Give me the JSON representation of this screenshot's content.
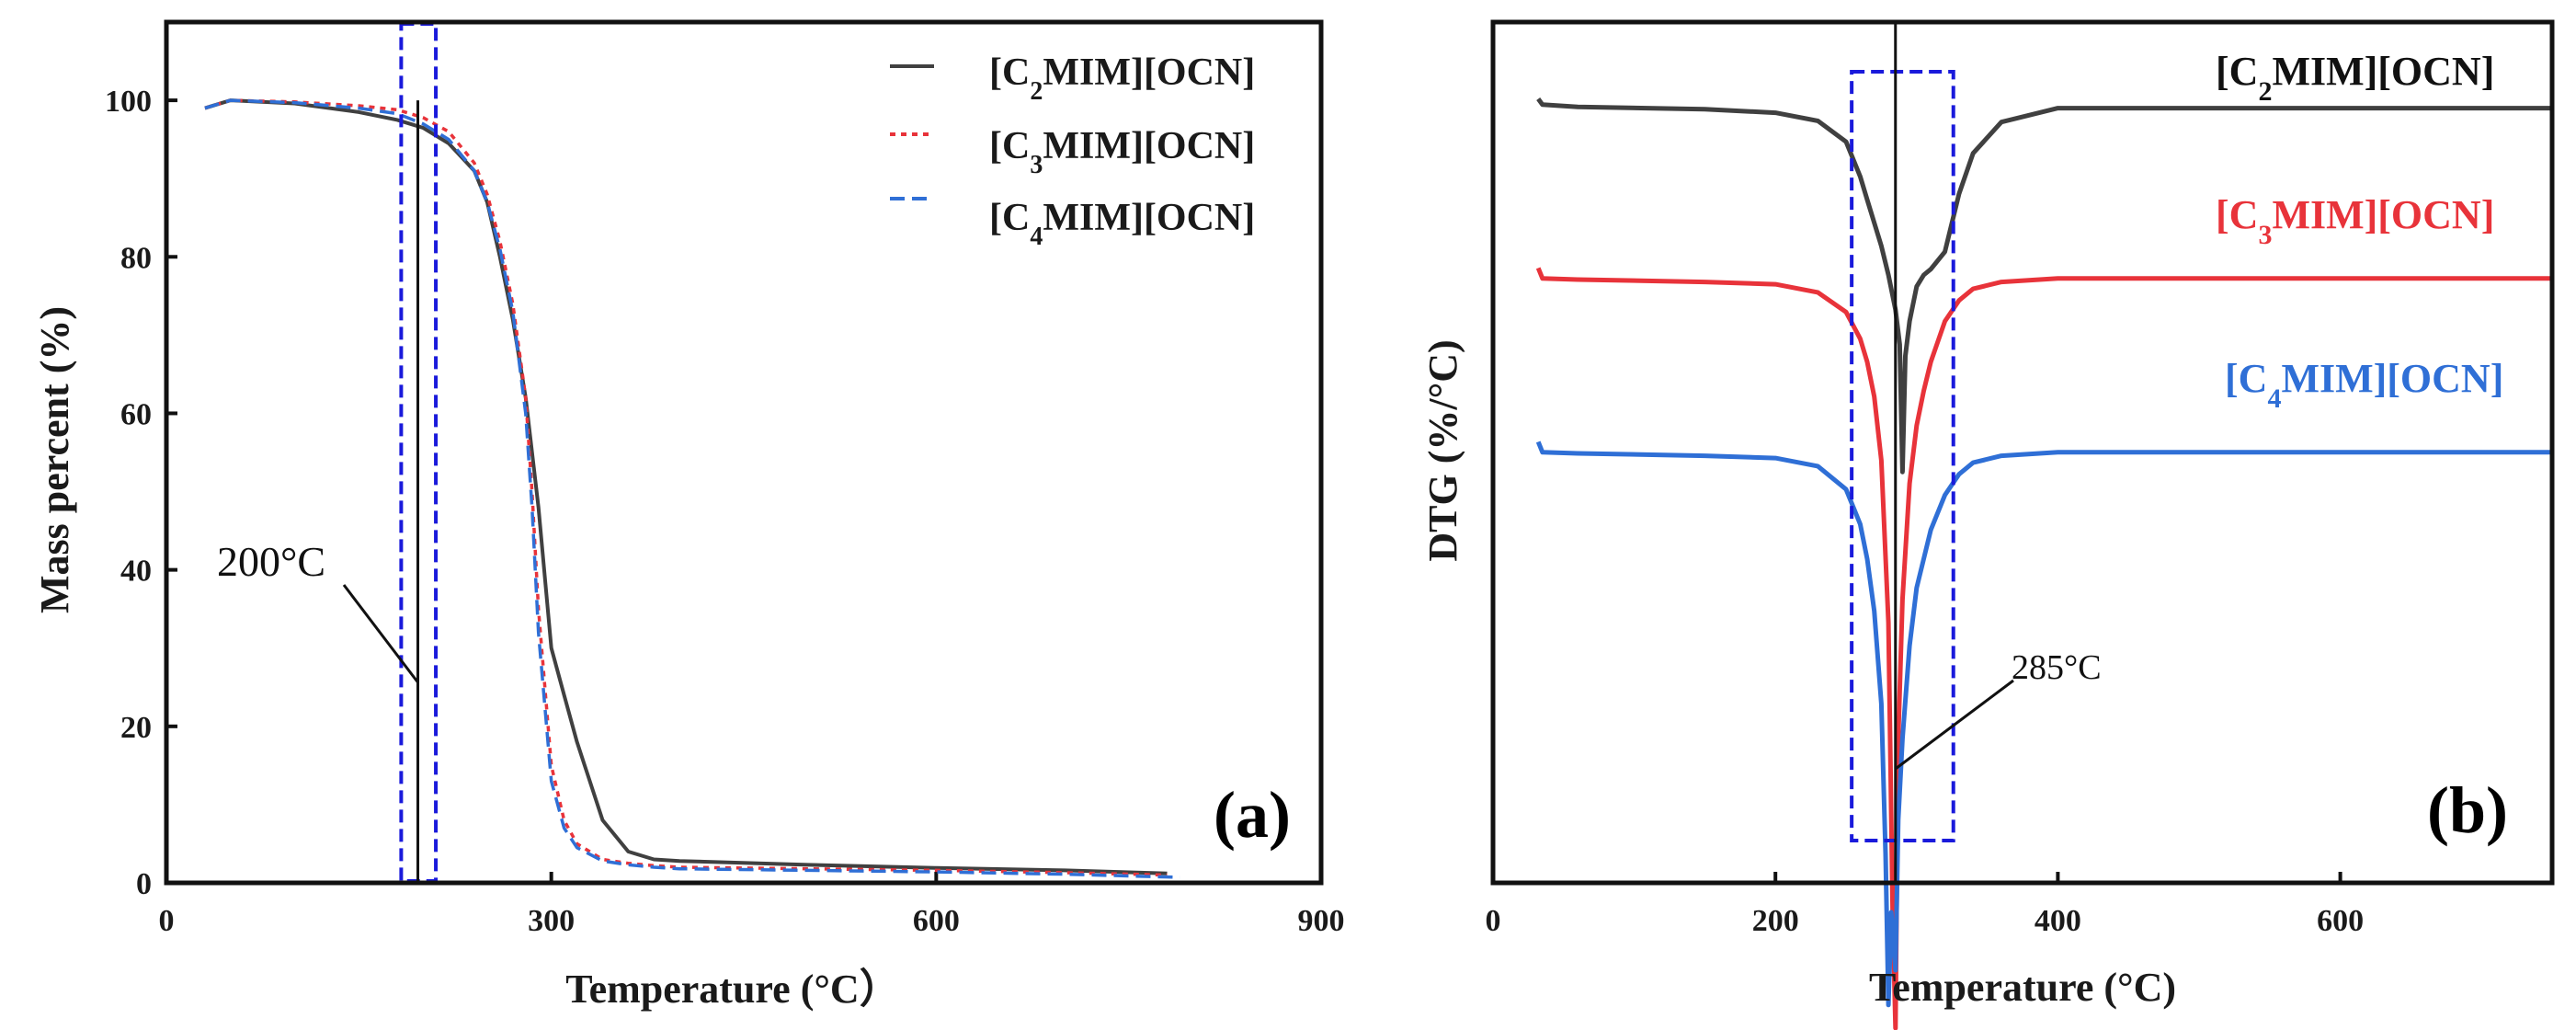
{
  "chart_data": [
    {
      "type": "line",
      "panel": "(a)",
      "title": "",
      "xlabel": "Temperature (°C）",
      "ylabel": "Mass percent (%)",
      "xlim": [
        0,
        900
      ],
      "ylim": [
        0,
        110
      ],
      "xticks": [
        "0",
        "300",
        "600",
        "900"
      ],
      "yticks": [
        "0",
        "20",
        "40",
        "60",
        "80",
        "100"
      ],
      "legend": [
        {
          "name": "[C₂MIM][OCN]",
          "color": "#404040",
          "style": "solid"
        },
        {
          "name": "[C₃MIM][OCN]",
          "color": "#e8333a",
          "style": "dotted"
        },
        {
          "name": "[C₄MIM][OCN]",
          "color": "#2f6fd6",
          "style": "dashed"
        }
      ],
      "annotation": "200°C",
      "series": [
        {
          "name": "[C₂MIM][OCN]",
          "color": "#404040",
          "style": "solid",
          "x": [
            30,
            50,
            100,
            150,
            180,
            200,
            220,
            240,
            250,
            260,
            270,
            280,
            290,
            300,
            310,
            320,
            340,
            360,
            380,
            400,
            500,
            600,
            700,
            780
          ],
          "y": [
            99,
            100,
            99.6,
            98.5,
            97.5,
            96.5,
            94.5,
            91,
            87,
            80,
            72,
            62,
            48,
            30,
            24,
            18,
            8,
            4,
            3,
            2.8,
            2.3,
            1.9,
            1.6,
            1.2
          ]
        },
        {
          "name": "[C₃MIM][OCN]",
          "color": "#e8333a",
          "style": "dotted",
          "x": [
            30,
            50,
            100,
            150,
            180,
            200,
            220,
            240,
            250,
            260,
            270,
            280,
            285,
            290,
            300,
            310,
            320,
            340,
            360,
            380,
            400,
            500,
            600,
            700,
            780
          ],
          "y": [
            99,
            100,
            99.8,
            99.3,
            98.8,
            97.8,
            96,
            92,
            88,
            82,
            74,
            62,
            50,
            35,
            15,
            8,
            5,
            3,
            2.5,
            2.2,
            2,
            1.8,
            1.6,
            1.3,
            1
          ]
        },
        {
          "name": "[C₄MIM][OCN]",
          "color": "#2f6fd6",
          "style": "dashed",
          "x": [
            30,
            50,
            100,
            150,
            180,
            200,
            220,
            240,
            250,
            260,
            270,
            280,
            285,
            290,
            300,
            310,
            320,
            340,
            360,
            380,
            400,
            500,
            600,
            700,
            790
          ],
          "y": [
            99,
            100,
            99.7,
            99,
            98.3,
            97,
            95,
            91,
            87,
            81,
            73,
            60,
            48,
            32,
            13,
            7,
            4.5,
            2.8,
            2.3,
            2,
            1.8,
            1.6,
            1.4,
            1.1,
            0.7
          ]
        }
      ]
    },
    {
      "type": "line",
      "panel": "(b)",
      "title": "",
      "xlabel": "Temperature (°C)",
      "ylabel": "DTG (%/°C)",
      "xlim": [
        0,
        750
      ],
      "xticks": [
        "0",
        "200",
        "400",
        "600"
      ],
      "yticks": [],
      "annotation": "285°C",
      "series": [
        {
          "name": "[C₂MIM][OCN]",
          "color": "#404040",
          "x": [
            32,
            35,
            60,
            150,
            200,
            230,
            250,
            260,
            265,
            270,
            275,
            280,
            285,
            288,
            290,
            292,
            295,
            300,
            305,
            310,
            320,
            330,
            340,
            360,
            400,
            500,
            750
          ],
          "y": [
            0.2,
            -0.3,
            -0.5,
            -0.7,
            -1.0,
            -1.7,
            -3.5,
            -6.5,
            -8.5,
            -10.5,
            -12.5,
            -15,
            -18,
            -21,
            -32,
            -22,
            -19,
            -16,
            -15,
            -14.5,
            -13,
            -8,
            -4.5,
            -1.8,
            -0.6,
            -0.6,
            -0.6
          ]
        },
        {
          "name": "[C₃MIM][OCN]",
          "color": "#e8333a",
          "x": [
            32,
            35,
            60,
            150,
            200,
            230,
            250,
            260,
            265,
            270,
            275,
            280,
            283,
            285,
            287,
            290,
            295,
            300,
            305,
            310,
            320,
            330,
            340,
            360,
            400,
            500,
            750
          ],
          "y": [
            0.6,
            -0.3,
            -0.4,
            -0.6,
            -0.8,
            -1.5,
            -3.2,
            -5.5,
            -7.5,
            -10.5,
            -16,
            -30,
            -55,
            -65,
            -40,
            -28,
            -18,
            -13,
            -10,
            -7.5,
            -4,
            -2.2,
            -1.2,
            -0.6,
            -0.3,
            -0.3,
            -0.3
          ]
        },
        {
          "name": "[C₄MIM][OCN]",
          "color": "#2f6fd6",
          "x": [
            32,
            35,
            60,
            150,
            200,
            230,
            250,
            260,
            265,
            270,
            275,
            278,
            280,
            282,
            285,
            287,
            290,
            295,
            300,
            305,
            310,
            320,
            330,
            340,
            360,
            400,
            500,
            750
          ],
          "y": [
            0.6,
            -0.3,
            -0.4,
            -0.6,
            -0.8,
            -1.5,
            -3.5,
            -6.5,
            -9.5,
            -14,
            -22,
            -35,
            -48,
            -40,
            -45,
            -32,
            -25,
            -17,
            -12,
            -9.5,
            -7,
            -4,
            -2.2,
            -1.2,
            -0.6,
            -0.3,
            -0.3,
            -0.3
          ]
        }
      ],
      "series_labels": [
        "[C₂MIM][OCN]",
        "[C₃MIM][OCN]",
        "[C₄MIM][OCN]"
      ],
      "series_offsets": [
        0,
        -15,
        -30
      ]
    }
  ],
  "panels": {
    "a": {
      "tag": "(a)",
      "annotation": "200°C",
      "xlabel": "Temperature (°C）",
      "ylabel": "Mass percent (%)"
    },
    "b": {
      "tag": "(b)",
      "annotation": "285°C",
      "xlabel": "Temperature (°C)",
      "ylabel": "DTG (%/°C)"
    }
  },
  "legend": {
    "items": [
      {
        "label_base": "[C",
        "sub": "2",
        "label_rest": "MIM][OCN]"
      },
      {
        "label_base": "[C",
        "sub": "3",
        "label_rest": "MIM][OCN]"
      },
      {
        "label_base": "[C",
        "sub": "4",
        "label_rest": "MIM][OCN]"
      }
    ]
  },
  "dtg_labels": {
    "items": [
      {
        "label_base": "[C",
        "sub": "2",
        "label_rest": "MIM][OCN]",
        "color": "#111111"
      },
      {
        "label_base": "[C",
        "sub": "3",
        "label_rest": "MIM][OCN]",
        "color": "#e8333a"
      },
      {
        "label_base": "[C",
        "sub": "4",
        "label_rest": "MIM][OCN]",
        "color": "#2f6fd6"
      }
    ]
  },
  "colors": {
    "c2": "#404040",
    "c3": "#e8333a",
    "c4": "#2f6fd6",
    "highlight": "#1a1adb"
  }
}
